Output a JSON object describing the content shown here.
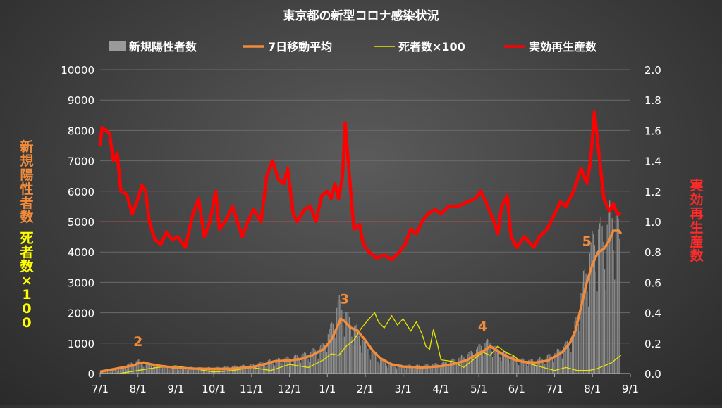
{
  "chart_data": {
    "type": "bar+line",
    "title": "東京都の新型コロナ感染状況",
    "legend": {
      "placement": "top",
      "entries": [
        {
          "label": "新規陽性者数",
          "color": "#9a9a9a",
          "kind": "bar"
        },
        {
          "label": "7日移動平均",
          "color": "#f08c3c",
          "kind": "line"
        },
        {
          "label": "死者数×100",
          "color": "#e6e600",
          "kind": "line"
        },
        {
          "label": "実効再生産数",
          "color": "#ff0000",
          "kind": "line"
        }
      ]
    },
    "y_left_label_1": "新規陽性者数",
    "y_left_label_2": "死者数×100",
    "y_right_label": "実効再生産数",
    "y_left_range": [
      0,
      10000
    ],
    "y_right_range": [
      0,
      2.0
    ],
    "y_left_ticks": [
      "0",
      "1000",
      "2000",
      "3000",
      "4000",
      "5000",
      "6000",
      "7000",
      "8000",
      "9000",
      "10000"
    ],
    "y_right_ticks": [
      "0.0",
      "0.2",
      "0.4",
      "0.6",
      "0.8",
      "1.0",
      "1.2",
      "1.4",
      "1.6",
      "1.8",
      "2.0"
    ],
    "x_ticks": [
      "7/1",
      "8/1",
      "9/1",
      "10/1",
      "11/1",
      "12/1",
      "1/1",
      "2/1",
      "3/1",
      "4/1",
      "5/1",
      "6/1",
      "7/1",
      "8/1",
      "9/1"
    ],
    "x_range_months": [
      0,
      14
    ],
    "reference_line_right": 1.0,
    "wave_annotations": [
      {
        "label": "2",
        "x": 1.0,
        "y": 900
      },
      {
        "label": "3",
        "x": 6.45,
        "y": 2300
      },
      {
        "label": "4",
        "x": 10.1,
        "y": 1400
      },
      {
        "label": "5",
        "x": 12.85,
        "y": 4200
      }
    ],
    "series_7day_avg": {
      "name": "7日移動平均",
      "points": [
        [
          0,
          60
        ],
        [
          0.3,
          130
        ],
        [
          0.6,
          200
        ],
        [
          0.9,
          270
        ],
        [
          1.0,
          330
        ],
        [
          1.15,
          360
        ],
        [
          1.35,
          300
        ],
        [
          1.6,
          250
        ],
        [
          2.0,
          190
        ],
        [
          2.5,
          160
        ],
        [
          3.0,
          150
        ],
        [
          3.5,
          160
        ],
        [
          4.0,
          210
        ],
        [
          4.3,
          290
        ],
        [
          4.6,
          400
        ],
        [
          5.0,
          430
        ],
        [
          5.3,
          480
        ],
        [
          5.6,
          600
        ],
        [
          5.9,
          800
        ],
        [
          6.1,
          1100
        ],
        [
          6.25,
          1500
        ],
        [
          6.35,
          1800
        ],
        [
          6.45,
          1730
        ],
        [
          6.6,
          1520
        ],
        [
          6.8,
          1400
        ],
        [
          7.0,
          1100
        ],
        [
          7.2,
          750
        ],
        [
          7.4,
          500
        ],
        [
          7.7,
          300
        ],
        [
          8.0,
          230
        ],
        [
          8.5,
          200
        ],
        [
          9.0,
          240
        ],
        [
          9.4,
          330
        ],
        [
          9.7,
          450
        ],
        [
          9.9,
          600
        ],
        [
          10.05,
          700
        ],
        [
          10.2,
          800
        ],
        [
          10.3,
          900
        ],
        [
          10.45,
          780
        ],
        [
          10.6,
          650
        ],
        [
          10.8,
          530
        ],
        [
          11.0,
          430
        ],
        [
          11.2,
          380
        ],
        [
          11.5,
          360
        ],
        [
          11.8,
          420
        ],
        [
          12.0,
          550
        ],
        [
          12.2,
          700
        ],
        [
          12.4,
          1000
        ],
        [
          12.55,
          1400
        ],
        [
          12.7,
          2200
        ],
        [
          12.85,
          3000
        ],
        [
          13.0,
          3600
        ],
        [
          13.15,
          4000
        ],
        [
          13.3,
          4100
        ],
        [
          13.45,
          4400
        ],
        [
          13.55,
          4700
        ],
        [
          13.7,
          4700
        ],
        [
          13.75,
          4600
        ]
      ]
    },
    "series_deaths_x100": {
      "name": "死者数×100",
      "points": [
        [
          0,
          0
        ],
        [
          0.5,
          0
        ],
        [
          1.0,
          100
        ],
        [
          1.5,
          200
        ],
        [
          2.0,
          250
        ],
        [
          2.5,
          150
        ],
        [
          3.0,
          50
        ],
        [
          3.5,
          100
        ],
        [
          4.0,
          200
        ],
        [
          4.5,
          100
        ],
        [
          5.0,
          300
        ],
        [
          5.5,
          200
        ],
        [
          5.9,
          450
        ],
        [
          6.1,
          650
        ],
        [
          6.3,
          600
        ],
        [
          6.5,
          900
        ],
        [
          6.7,
          1100
        ],
        [
          6.9,
          1500
        ],
        [
          7.1,
          1800
        ],
        [
          7.25,
          2000
        ],
        [
          7.35,
          1700
        ],
        [
          7.5,
          1500
        ],
        [
          7.7,
          1900
        ],
        [
          7.85,
          1600
        ],
        [
          8.0,
          1800
        ],
        [
          8.2,
          1400
        ],
        [
          8.35,
          1700
        ],
        [
          8.5,
          1300
        ],
        [
          8.6,
          900
        ],
        [
          8.7,
          800
        ],
        [
          8.8,
          1450
        ],
        [
          8.9,
          1000
        ],
        [
          9.0,
          450
        ],
        [
          9.3,
          400
        ],
        [
          9.6,
          200
        ],
        [
          9.9,
          500
        ],
        [
          10.1,
          700
        ],
        [
          10.3,
          600
        ],
        [
          10.5,
          900
        ],
        [
          10.7,
          700
        ],
        [
          10.9,
          600
        ],
        [
          11.1,
          400
        ],
        [
          11.4,
          300
        ],
        [
          11.7,
          200
        ],
        [
          12.0,
          100
        ],
        [
          12.3,
          200
        ],
        [
          12.6,
          100
        ],
        [
          12.9,
          100
        ],
        [
          13.1,
          150
        ],
        [
          13.3,
          250
        ],
        [
          13.5,
          350
        ],
        [
          13.65,
          500
        ],
        [
          13.75,
          600
        ]
      ]
    },
    "series_rt": {
      "name": "実効再生産数",
      "points": [
        [
          0,
          1.5
        ],
        [
          0.05,
          1.62
        ],
        [
          0.15,
          1.6
        ],
        [
          0.25,
          1.58
        ],
        [
          0.35,
          1.4
        ],
        [
          0.45,
          1.45
        ],
        [
          0.55,
          1.2
        ],
        [
          0.7,
          1.18
        ],
        [
          0.85,
          1.05
        ],
        [
          1.0,
          1.15
        ],
        [
          1.1,
          1.24
        ],
        [
          1.2,
          1.2
        ],
        [
          1.3,
          1.0
        ],
        [
          1.45,
          0.88
        ],
        [
          1.6,
          0.85
        ],
        [
          1.75,
          0.93
        ],
        [
          1.9,
          0.88
        ],
        [
          2.05,
          0.9
        ],
        [
          2.25,
          0.83
        ],
        [
          2.45,
          1.05
        ],
        [
          2.6,
          1.15
        ],
        [
          2.75,
          0.9
        ],
        [
          2.9,
          1.0
        ],
        [
          3.05,
          1.2
        ],
        [
          3.15,
          0.95
        ],
        [
          3.3,
          1.0
        ],
        [
          3.5,
          1.1
        ],
        [
          3.75,
          0.9
        ],
        [
          3.9,
          1.0
        ],
        [
          4.05,
          1.08
        ],
        [
          4.25,
          1.0
        ],
        [
          4.4,
          1.3
        ],
        [
          4.55,
          1.4
        ],
        [
          4.7,
          1.28
        ],
        [
          4.85,
          1.25
        ],
        [
          4.95,
          1.35
        ],
        [
          5.1,
          1.05
        ],
        [
          5.2,
          1.0
        ],
        [
          5.4,
          1.08
        ],
        [
          5.55,
          1.1
        ],
        [
          5.7,
          1.0
        ],
        [
          5.85,
          1.17
        ],
        [
          6.0,
          1.2
        ],
        [
          6.1,
          1.15
        ],
        [
          6.2,
          1.25
        ],
        [
          6.3,
          1.15
        ],
        [
          6.4,
          1.3
        ],
        [
          6.47,
          1.65
        ],
        [
          6.55,
          1.4
        ],
        [
          6.7,
          0.95
        ],
        [
          6.85,
          0.98
        ],
        [
          6.95,
          0.85
        ],
        [
          7.1,
          0.8
        ],
        [
          7.3,
          0.76
        ],
        [
          7.5,
          0.78
        ],
        [
          7.7,
          0.75
        ],
        [
          7.9,
          0.8
        ],
        [
          8.05,
          0.85
        ],
        [
          8.2,
          0.95
        ],
        [
          8.35,
          0.92
        ],
        [
          8.5,
          1.0
        ],
        [
          8.65,
          1.05
        ],
        [
          8.85,
          1.08
        ],
        [
          9.0,
          1.05
        ],
        [
          9.2,
          1.1
        ],
        [
          9.45,
          1.1
        ],
        [
          9.7,
          1.13
        ],
        [
          9.9,
          1.15
        ],
        [
          10.05,
          1.2
        ],
        [
          10.2,
          1.12
        ],
        [
          10.4,
          1.0
        ],
        [
          10.5,
          0.92
        ],
        [
          10.6,
          1.1
        ],
        [
          10.75,
          1.17
        ],
        [
          10.85,
          0.9
        ],
        [
          11.0,
          0.83
        ],
        [
          11.2,
          0.9
        ],
        [
          11.45,
          0.83
        ],
        [
          11.6,
          0.9
        ],
        [
          11.8,
          0.95
        ],
        [
          12.0,
          1.05
        ],
        [
          12.15,
          1.13
        ],
        [
          12.3,
          1.1
        ],
        [
          12.5,
          1.2
        ],
        [
          12.7,
          1.35
        ],
        [
          12.85,
          1.25
        ],
        [
          12.95,
          1.4
        ],
        [
          13.05,
          1.72
        ],
        [
          13.15,
          1.5
        ],
        [
          13.3,
          1.15
        ],
        [
          13.45,
          1.07
        ],
        [
          13.55,
          1.12
        ],
        [
          13.65,
          1.05
        ],
        [
          13.75,
          1.05
        ]
      ]
    },
    "series_daily_cases": {
      "name": "新規陽性者数",
      "envelope": [
        [
          0,
          80
        ],
        [
          0.5,
          200
        ],
        [
          1.0,
          450
        ],
        [
          1.5,
          300
        ],
        [
          2.0,
          220
        ],
        [
          3.0,
          200
        ],
        [
          4.0,
          300
        ],
        [
          4.5,
          450
        ],
        [
          5.0,
          550
        ],
        [
          5.5,
          700
        ],
        [
          5.9,
          1000
        ],
        [
          6.1,
          1600
        ],
        [
          6.3,
          2500
        ],
        [
          6.45,
          2200
        ],
        [
          6.6,
          1800
        ],
        [
          6.8,
          1500
        ],
        [
          7.0,
          1000
        ],
        [
          7.3,
          600
        ],
        [
          7.6,
          350
        ],
        [
          8.0,
          280
        ],
        [
          8.5,
          280
        ],
        [
          9.0,
          350
        ],
        [
          9.5,
          550
        ],
        [
          9.9,
          800
        ],
        [
          10.1,
          1050
        ],
        [
          10.3,
          1100
        ],
        [
          10.5,
          800
        ],
        [
          10.8,
          650
        ],
        [
          11.0,
          500
        ],
        [
          11.5,
          450
        ],
        [
          12.0,
          700
        ],
        [
          12.3,
          1000
        ],
        [
          12.5,
          1400
        ],
        [
          12.7,
          2800
        ],
        [
          12.85,
          3800
        ],
        [
          13.0,
          4500
        ],
        [
          13.15,
          5000
        ],
        [
          13.3,
          4800
        ],
        [
          13.45,
          5400
        ],
        [
          13.55,
          5800
        ],
        [
          13.65,
          5300
        ],
        [
          13.75,
          4000
        ]
      ]
    }
  }
}
